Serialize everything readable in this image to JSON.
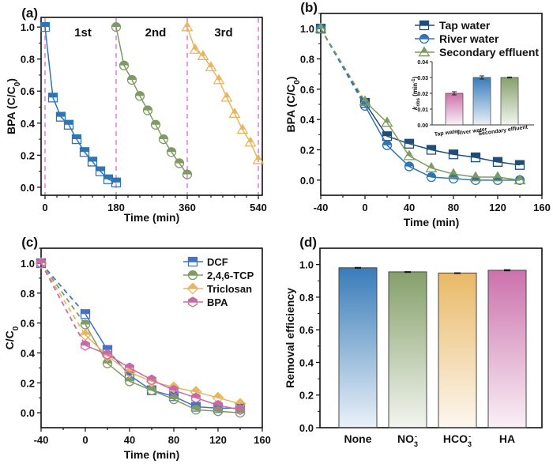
{
  "chart_data": [
    {
      "panel": "(a)",
      "type": "line",
      "title": "",
      "xlabel": "Time (min)",
      "ylabel": "BPA (C/C0)",
      "xlim": [
        -10,
        550
      ],
      "ylim": [
        -0.05,
        1.06
      ],
      "xticks": [
        0,
        180,
        360,
        540
      ],
      "yticks": [
        0.0,
        0.2,
        0.4,
        0.6,
        0.8,
        1.0
      ],
      "ytick_labels": [
        "0.0",
        "0.2",
        "0.4",
        "0.6",
        "0.8",
        "1.0"
      ],
      "vlines": [
        0,
        180,
        360,
        540
      ],
      "cycle_labels": [
        "1st",
        "2nd",
        "3rd"
      ],
      "series": [
        {
          "name": "1st",
          "color": "#2e75b6",
          "marker": "square",
          "x": [
            0,
            20,
            40,
            60,
            80,
            100,
            120,
            140,
            160,
            180
          ],
          "y": [
            1.0,
            0.56,
            0.44,
            0.39,
            0.3,
            0.22,
            0.16,
            0.1,
            0.05,
            0.03
          ]
        },
        {
          "name": "2nd",
          "color": "#7f9b63",
          "marker": "circle",
          "x": [
            180,
            200,
            220,
            240,
            260,
            280,
            300,
            320,
            340,
            360
          ],
          "y": [
            1.0,
            0.76,
            0.67,
            0.57,
            0.48,
            0.39,
            0.3,
            0.22,
            0.15,
            0.08
          ]
        },
        {
          "name": "3rd",
          "color": "#e8b560",
          "marker": "triangle",
          "x": [
            360,
            380,
            400,
            420,
            440,
            460,
            480,
            500,
            520,
            540
          ],
          "y": [
            1.0,
            0.86,
            0.82,
            0.75,
            0.67,
            0.56,
            0.46,
            0.36,
            0.28,
            0.17
          ]
        }
      ]
    },
    {
      "panel": "(b)",
      "type": "line",
      "xlabel": "Time (min)",
      "ylabel": "BPA (C/C0)",
      "xlim": [
        -40,
        160
      ],
      "ylim": [
        -0.1,
        1.1
      ],
      "xticks": [
        -40,
        0,
        40,
        80,
        120,
        160
      ],
      "yticks": [
        0.0,
        0.2,
        0.4,
        0.6,
        0.8,
        1.0
      ],
      "ytick_labels": [
        "0.0",
        "0.2",
        "0.4",
        "0.6",
        "0.8",
        "1.0"
      ],
      "legend": "top-right",
      "series": [
        {
          "name": "Tap water",
          "color": "#1f4e79",
          "marker": "square",
          "x": [
            -40,
            0,
            20,
            40,
            60,
            80,
            100,
            120,
            140
          ],
          "y": [
            1.0,
            0.51,
            0.29,
            0.24,
            0.2,
            0.17,
            0.15,
            0.12,
            0.1
          ]
        },
        {
          "name": "River water",
          "color": "#2e75b6",
          "marker": "circle",
          "x": [
            -40,
            0,
            20,
            40,
            60,
            80,
            100,
            120,
            140
          ],
          "y": [
            1.0,
            0.49,
            0.23,
            0.09,
            0.02,
            0.01,
            0.0,
            0.0,
            0.0
          ]
        },
        {
          "name": "Secondary effluent",
          "color": "#7f9b63",
          "marker": "triangle",
          "x": [
            -40,
            0,
            20,
            40,
            60,
            80,
            100,
            120,
            140
          ],
          "y": [
            1.0,
            0.52,
            0.38,
            0.16,
            0.08,
            0.04,
            0.02,
            0.02,
            0.0
          ]
        }
      ],
      "inset": {
        "type": "bar",
        "ylabel": "kobs (min-1)",
        "ylim": [
          0,
          0.04
        ],
        "yticks": [
          0.0,
          0.01,
          0.02,
          0.03,
          0.04
        ],
        "ytick_labels": [
          "0.00",
          "0.01",
          "0.02",
          "0.03",
          "0.04"
        ],
        "categories": [
          "Tap water",
          "River water",
          "Secondary effluent"
        ],
        "values": [
          0.02,
          0.03,
          0.03
        ],
        "errors": [
          0.001,
          0.001,
          0.0003
        ],
        "colors": [
          "#c96aa8",
          "#2e75b6",
          "#7f9b63"
        ]
      }
    },
    {
      "panel": "(c)",
      "type": "line",
      "xlabel": "Time (min)",
      "ylabel": "C/C0",
      "xlim": [
        -40,
        160
      ],
      "ylim": [
        -0.1,
        1.1
      ],
      "xticks": [
        -40,
        0,
        40,
        80,
        120,
        160
      ],
      "yticks": [
        0.0,
        0.2,
        0.4,
        0.6,
        0.8,
        1.0
      ],
      "ytick_labels": [
        "0.0",
        "0.2",
        "0.4",
        "0.6",
        "0.8",
        "1.0"
      ],
      "legend": "top-right",
      "series": [
        {
          "name": "DCF",
          "color": "#4472c4",
          "marker": "square",
          "x": [
            -40,
            0,
            20,
            40,
            60,
            80,
            100,
            120,
            140
          ],
          "y": [
            1.0,
            0.66,
            0.42,
            0.25,
            0.15,
            0.11,
            0.04,
            0.03,
            0.03
          ]
        },
        {
          "name": "2,4,6-TCP",
          "color": "#7f9b63",
          "marker": "circle",
          "x": [
            -40,
            0,
            20,
            40,
            60,
            80,
            100,
            120,
            140
          ],
          "y": [
            1.0,
            0.59,
            0.33,
            0.21,
            0.15,
            0.09,
            0.02,
            0.01,
            0.0
          ]
        },
        {
          "name": "Triclosan",
          "color": "#e8b560",
          "marker": "diamond",
          "x": [
            -40,
            0,
            20,
            40,
            60,
            80,
            100,
            120,
            140
          ],
          "y": [
            1.0,
            0.52,
            0.38,
            0.27,
            0.21,
            0.17,
            0.14,
            0.1,
            0.06
          ]
        },
        {
          "name": "BPA",
          "color": "#c96aa8",
          "marker": "hexagon",
          "x": [
            -40,
            0,
            20,
            40,
            60,
            80,
            100,
            120,
            140
          ],
          "y": [
            1.0,
            0.45,
            0.39,
            0.3,
            0.22,
            0.15,
            0.1,
            0.05,
            0.02
          ]
        }
      ]
    },
    {
      "panel": "(d)",
      "type": "bar",
      "xlabel": "",
      "ylabel": "Removal efficiency",
      "ylim": [
        0,
        1.1
      ],
      "yticks": [
        0.0,
        0.2,
        0.4,
        0.6,
        0.8,
        1.0
      ],
      "ytick_labels": [
        "0.0",
        "0.2",
        "0.4",
        "0.6",
        "0.8",
        "1.0"
      ],
      "categories": [
        "None",
        "NO3-",
        "HCO3-",
        "HA"
      ],
      "category_labels": [
        {
          "main": "None",
          "sub": "",
          "sup": ""
        },
        {
          "main": "NO",
          "sub": "3",
          "sup": "-"
        },
        {
          "main": "HCO",
          "sub": "3",
          "sup": "-"
        },
        {
          "main": "HA",
          "sub": "",
          "sup": ""
        }
      ],
      "values": [
        0.98,
        0.955,
        0.948,
        0.965
      ],
      "errors": [
        0.005,
        0.004,
        0.004,
        0.006
      ],
      "colors": [
        "#2e75b6",
        "#7f9b63",
        "#e8b560",
        "#c96aa8"
      ]
    }
  ]
}
